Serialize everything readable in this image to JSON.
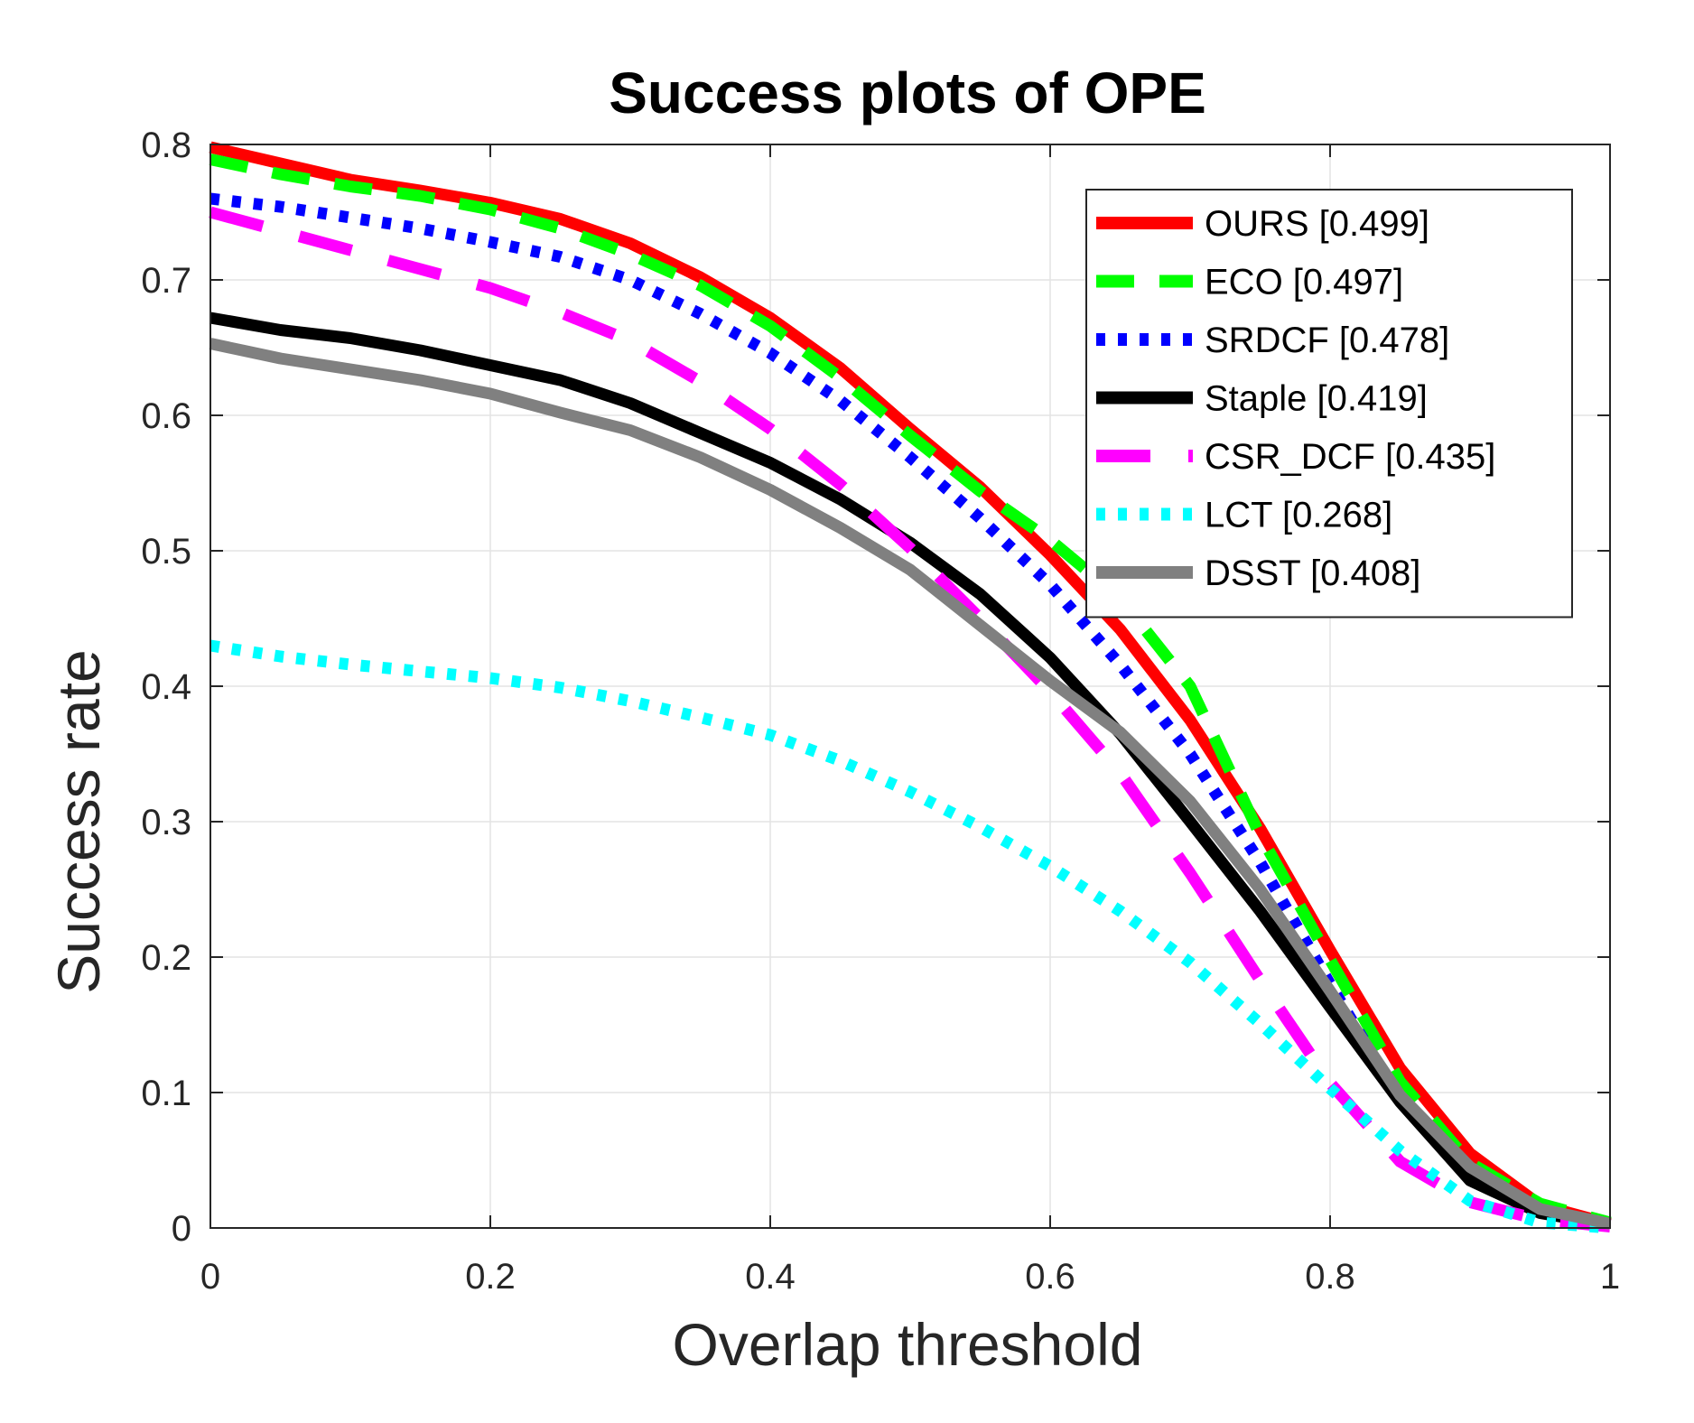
{
  "chart_data": {
    "type": "line",
    "title": "Success plots of OPE",
    "xlabel": "Overlap threshold",
    "ylabel": "Success rate",
    "xlim": [
      0,
      1
    ],
    "ylim": [
      0,
      0.8
    ],
    "xticks": [
      0,
      0.2,
      0.4,
      0.6,
      0.8,
      1
    ],
    "xtick_labels": [
      "0",
      "0.2",
      "0.4",
      "0.6",
      "0.8",
      "1"
    ],
    "yticks": [
      0,
      0.1,
      0.2,
      0.3,
      0.4,
      0.5,
      0.6,
      0.7,
      0.8
    ],
    "ytick_labels": [
      "0",
      "0.1",
      "0.2",
      "0.3",
      "0.4",
      "0.5",
      "0.6",
      "0.7",
      "0.8"
    ],
    "grid": true,
    "legend_position": "top-right",
    "x": [
      0,
      0.05,
      0.1,
      0.15,
      0.2,
      0.25,
      0.3,
      0.35,
      0.4,
      0.45,
      0.5,
      0.55,
      0.6,
      0.65,
      0.7,
      0.75,
      0.8,
      0.85,
      0.9,
      0.95,
      1.0
    ],
    "series": [
      {
        "name": "OURS",
        "legend_label": "OURS [0.499]",
        "color": "#ff0000",
        "style": "solid",
        "values": [
          0.798,
          0.786,
          0.774,
          0.766,
          0.757,
          0.745,
          0.727,
          0.702,
          0.672,
          0.635,
          0.59,
          0.547,
          0.497,
          0.442,
          0.375,
          0.295,
          0.205,
          0.118,
          0.055,
          0.017,
          0.003
        ]
      },
      {
        "name": "ECO",
        "legend_label": "ECO [0.497]",
        "color": "#00ff00",
        "style": "dashed",
        "values": [
          0.789,
          0.778,
          0.769,
          0.762,
          0.752,
          0.738,
          0.719,
          0.696,
          0.666,
          0.628,
          0.585,
          0.544,
          0.508,
          0.465,
          0.4,
          0.29,
          0.198,
          0.108,
          0.048,
          0.018,
          0.004
        ]
      },
      {
        "name": "SRDCF",
        "legend_label": "SRDCF [0.478]",
        "color": "#0000ff",
        "style": "dotted",
        "values": [
          0.76,
          0.754,
          0.746,
          0.738,
          0.728,
          0.717,
          0.7,
          0.675,
          0.646,
          0.611,
          0.569,
          0.524,
          0.475,
          0.416,
          0.35,
          0.27,
          0.18,
          0.094,
          0.039,
          0.012,
          0.002
        ]
      },
      {
        "name": "Staple",
        "legend_label": "Staple [0.419]",
        "color": "#000000",
        "style": "solid",
        "values": [
          0.672,
          0.663,
          0.657,
          0.648,
          0.637,
          0.626,
          0.609,
          0.587,
          0.565,
          0.538,
          0.506,
          0.468,
          0.421,
          0.365,
          0.3,
          0.234,
          0.163,
          0.093,
          0.035,
          0.011,
          0.002
        ]
      },
      {
        "name": "CSR_DCF",
        "legend_label": "CSR_DCF [0.435]",
        "color": "#ff00ff",
        "style": "longdash",
        "values": [
          0.75,
          0.736,
          0.722,
          0.708,
          0.694,
          0.676,
          0.655,
          0.625,
          0.59,
          0.549,
          0.502,
          0.45,
          0.396,
          0.336,
          0.262,
          0.183,
          0.107,
          0.049,
          0.019,
          0.006,
          0.001
        ]
      },
      {
        "name": "LCT",
        "legend_label": "LCT [0.268]",
        "color": "#00ffff",
        "style": "dotted",
        "values": [
          0.43,
          0.422,
          0.416,
          0.411,
          0.406,
          0.399,
          0.389,
          0.377,
          0.364,
          0.345,
          0.322,
          0.296,
          0.267,
          0.234,
          0.196,
          0.151,
          0.103,
          0.057,
          0.02,
          0.004,
          0.0
        ]
      },
      {
        "name": "DSST",
        "legend_label": "DSST [0.408]",
        "color": "#808080",
        "style": "solid",
        "values": [
          0.653,
          0.642,
          0.634,
          0.626,
          0.616,
          0.602,
          0.589,
          0.569,
          0.545,
          0.517,
          0.486,
          0.445,
          0.404,
          0.366,
          0.315,
          0.25,
          0.175,
          0.098,
          0.045,
          0.014,
          0.003
        ]
      }
    ]
  }
}
